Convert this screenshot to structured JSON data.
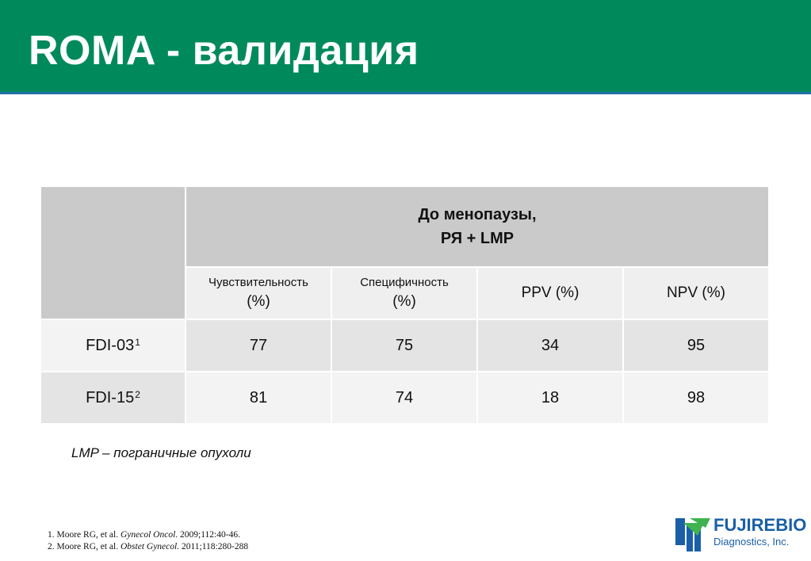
{
  "slide": {
    "title": "ROMA - валидация"
  },
  "table": {
    "group_header_line1": "До менопаузы,",
    "group_header_line2": "РЯ + LMP",
    "subheaders": [
      {
        "line1": "Чувствительность",
        "line2": "(%)"
      },
      {
        "line1": "Специфичность",
        "line2": "(%)"
      },
      {
        "single": "PPV (%)"
      },
      {
        "single": "NPV (%)"
      }
    ],
    "rows": [
      {
        "label": "FDI-03",
        "sup": "1",
        "values": [
          "77",
          "75",
          "34",
          "95"
        ]
      },
      {
        "label": "FDI-15",
        "sup": "2",
        "values": [
          "81",
          "74",
          "18",
          "98"
        ]
      }
    ]
  },
  "note": "LMP – пограничные опухоли",
  "references": [
    {
      "pre": "1. Moore RG, et al. ",
      "journal": "Gynecol Oncol",
      "post": ". 2009;112:40-46."
    },
    {
      "pre": "2. Moore RG, et al. ",
      "journal": "Obstet Gynecol.",
      "post": " 2011;118:280-288"
    }
  ],
  "logo": {
    "icon": "fujirebio-logo-icon",
    "name": "FUJIREBIO",
    "sub": "Diagnostics, Inc."
  },
  "colors": {
    "header_green": "#008a5c",
    "header_border_blue": "#1f6fa8",
    "table_header_gray": "#cacaca",
    "logo_blue": "#1a5fa8"
  }
}
